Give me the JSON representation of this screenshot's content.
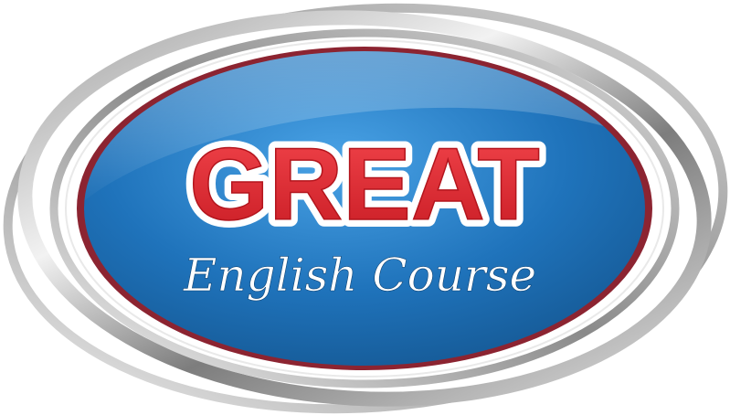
{
  "logo": {
    "title": "GREAT",
    "subtitle": "English Course",
    "colors": {
      "title_red": "#e3262f",
      "title_outline": "#ffffff",
      "oval_blue": "#1f6fb5",
      "oval_blue_light": "#3f9be0",
      "inner_ring": "#8c2431",
      "outer_ring": "#c8c8c8",
      "subtitle": "#ffffff"
    }
  }
}
